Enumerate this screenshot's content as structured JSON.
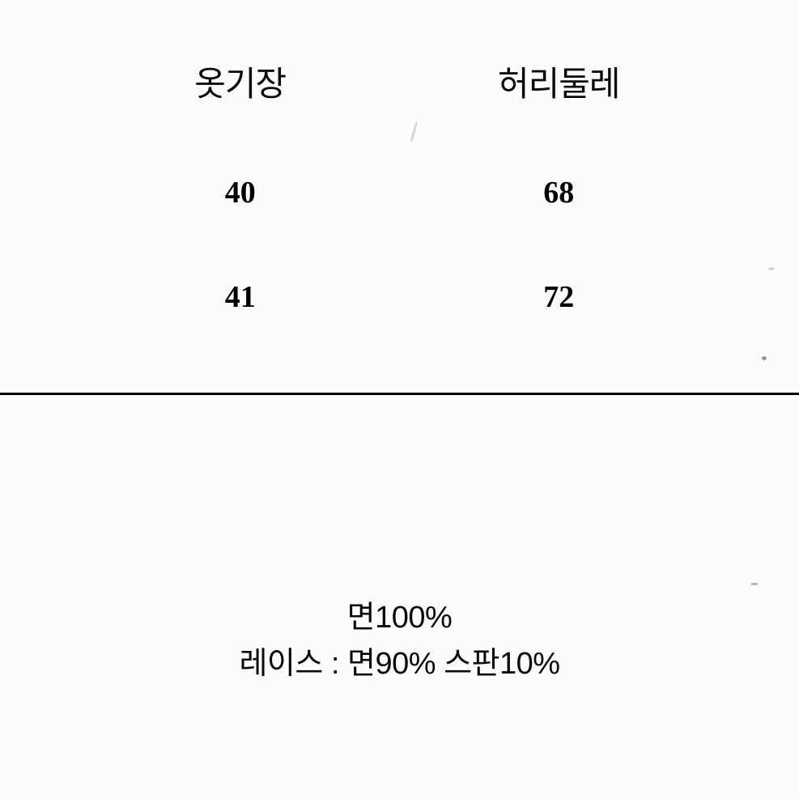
{
  "table": {
    "type": "table",
    "columns": [
      "옷기장",
      "허리둘레"
    ],
    "rows": [
      [
        "40",
        "68"
      ],
      [
        "41",
        "72"
      ]
    ],
    "header_fontsize": 42,
    "data_fontsize": 38,
    "header_color": "#0a0a0a",
    "data_color": "#000000",
    "background_color": "#fcfcfc"
  },
  "divider": {
    "color": "#000000",
    "thickness": 3
  },
  "material": {
    "line1": "면100%",
    "line2": "레이스 : 면90% 스판10%",
    "fontsize": 38,
    "color": "#0a0a0a"
  }
}
